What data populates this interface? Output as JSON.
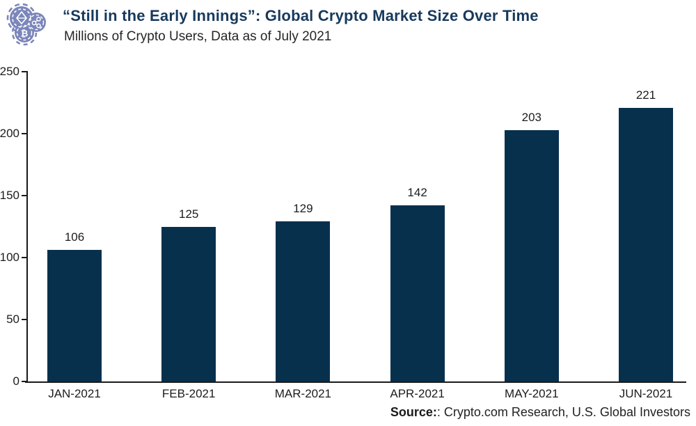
{
  "header": {
    "title": "“Still in the Early Innings”: Global Crypto Market Size Over Time",
    "subtitle": "Millions of Crypto Users, Data as of July 2021"
  },
  "icons": {
    "logo": "crypto-coins-logo"
  },
  "colors": {
    "bar": "#07304d",
    "title": "#17395c",
    "logo": "#7b86ba",
    "axis": "#1a1a1a",
    "text": "#1c1c1c"
  },
  "chart_data": {
    "type": "bar",
    "title": "“Still in the Early Innings”: Global Crypto Market Size Over Time",
    "subtitle": "Millions of Crypto Users, Data as of July 2021",
    "categories": [
      "JAN-2021",
      "FEB-2021",
      "MAR-2021",
      "APR-2021",
      "MAY-2021",
      "JUN-2021"
    ],
    "values": [
      106,
      125,
      129,
      142,
      203,
      221
    ],
    "xlabel": "",
    "ylabel": "",
    "ylim": [
      0,
      250
    ],
    "yticks": [
      0,
      50,
      100,
      150,
      200,
      250
    ],
    "grid": false,
    "legend": "none",
    "bar_color": "#07304d"
  },
  "source": {
    "label_bold": "Source:",
    "text": ": Crypto.com Research, U.S. Global Investors"
  }
}
